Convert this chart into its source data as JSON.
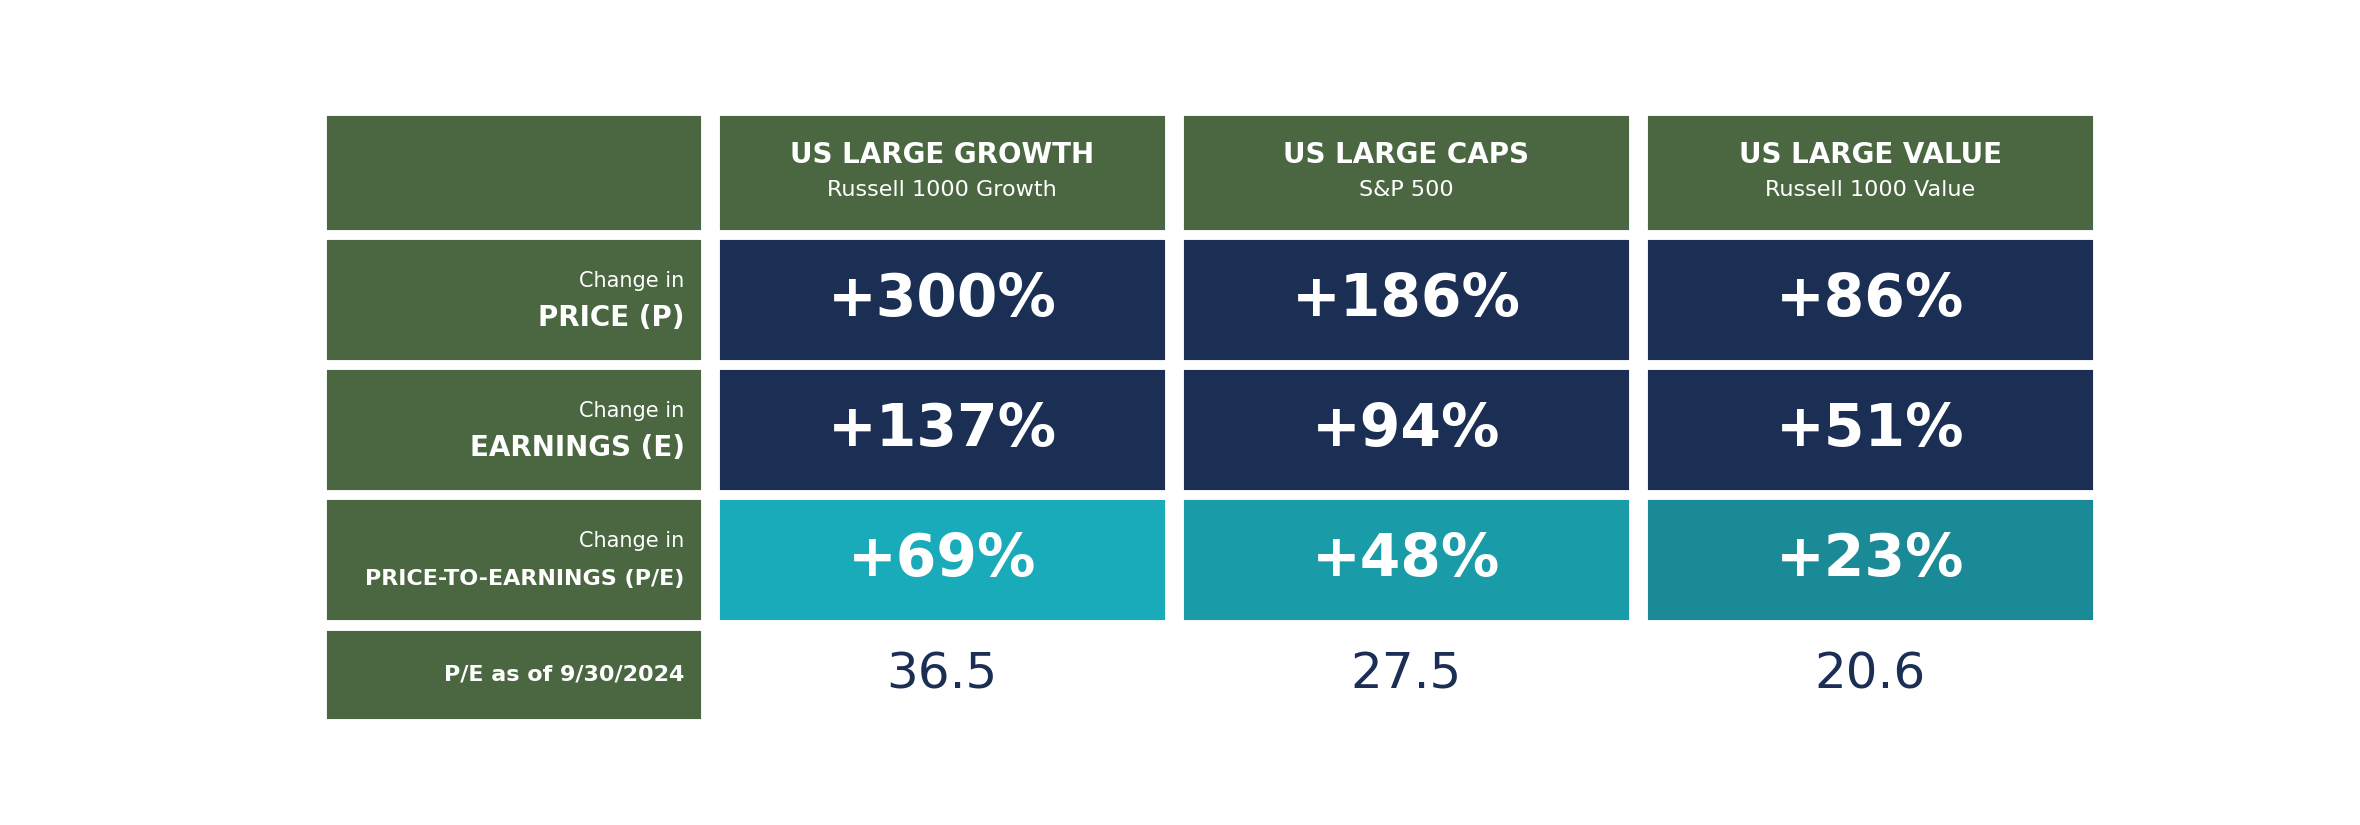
{
  "col_headers": [
    {
      "line1": "US LARGE GROWTH",
      "line2": "Russell 1000 Growth"
    },
    {
      "line1": "US LARGE CAPS",
      "line2": "S&P 500"
    },
    {
      "line1": "US LARGE VALUE",
      "line2": "Russell 1000 Value"
    }
  ],
  "rows": [
    {
      "label_line1": "Change in",
      "label_line2": "PRICE (P)",
      "values": [
        "+300%",
        "+186%",
        "+86%"
      ],
      "cell_bg": "#1b2f55",
      "label_bg": "#4a6741",
      "text_color": "#ffffff",
      "value_fontsize": 42,
      "label_fontsize_line1": 15,
      "label_fontsize_line2": 20
    },
    {
      "label_line1": "Change in",
      "label_line2": "EARNINGS (E)",
      "values": [
        "+137%",
        "+94%",
        "+51%"
      ],
      "cell_bg": "#1b2f55",
      "label_bg": "#4a6741",
      "text_color": "#ffffff",
      "value_fontsize": 42,
      "label_fontsize_line1": 15,
      "label_fontsize_line2": 20
    },
    {
      "label_line1": "Change in",
      "label_line2": "PRICE-TO-EARNINGS (P/E)",
      "values": [
        "+69%",
        "+48%",
        "+23%"
      ],
      "cell_bgs": [
        "#1aabba",
        "#1a9ba8",
        "#1a8a96"
      ],
      "label_bg": "#4a6741",
      "text_color": "#ffffff",
      "value_fontsize": 42,
      "label_fontsize_line1": 15,
      "label_fontsize_line2": 16
    },
    {
      "label_line1": "",
      "label_line2": "P/E as of 9/30/2024",
      "values": [
        "36.5",
        "27.5",
        "20.6"
      ],
      "cell_bg": "#ffffff",
      "label_bg": "#4a6741",
      "text_color": "#1b2f55",
      "value_fontsize": 36,
      "label_fontsize_line1": 14,
      "label_fontsize_line2": 16
    }
  ],
  "header_bg": "#4a6741",
  "header_text_color": "#ffffff",
  "label_col_bg": "#4a6741",
  "fig_bg": "#ffffff",
  "header_line1_fontsize": 20,
  "header_line2_fontsize": 16,
  "last_row_label_text_color": "#ffffff",
  "last_row_value_text_color": "#1b2f55"
}
